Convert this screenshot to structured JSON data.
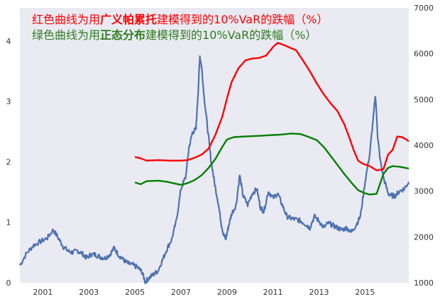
{
  "chart_data": {
    "type": "line",
    "annotations": [
      {
        "parts": [
          "红色曲线为用",
          "广义帕累托",
          "建模得到的10%VaR的跌幅（%）"
        ],
        "color": "#ff0000",
        "strong_index": 1
      },
      {
        "parts": [
          "绿色曲线为用",
          "正态分布",
          "建模得到的10%VaR的跌幅（%）"
        ],
        "color": "#2d7d1e",
        "strong_index": 1
      }
    ],
    "x_axis": {
      "range": [
        2000.0,
        2016.9
      ],
      "ticks": [
        "2001",
        "2003",
        "2005",
        "2007",
        "2009",
        "2011",
        "2013",
        "2015"
      ]
    },
    "y_left": {
      "range": [
        0,
        4.55
      ],
      "ticks": [
        "0",
        "1",
        "2",
        "3",
        "4"
      ]
    },
    "y_right": {
      "range": [
        1000,
        7000
      ],
      "ticks": [
        "1000",
        "2000",
        "3000",
        "4000",
        "5000",
        "6000",
        "7000"
      ]
    },
    "grid": false,
    "background_color": "#eaeaf2",
    "series": [
      {
        "axis": "right",
        "color": "#4c72b0",
        "points": [
          [
            2000.0,
            1380
          ],
          [
            2000.3,
            1650
          ],
          [
            2000.6,
            1820
          ],
          [
            2000.9,
            1900
          ],
          [
            2001.2,
            1980
          ],
          [
            2001.45,
            2160
          ],
          [
            2001.7,
            1950
          ],
          [
            2001.9,
            1780
          ],
          [
            2002.1,
            1690
          ],
          [
            2002.3,
            1660
          ],
          [
            2002.5,
            1700
          ],
          [
            2002.7,
            1640
          ],
          [
            2002.9,
            1540
          ],
          [
            2003.1,
            1620
          ],
          [
            2003.3,
            1610
          ],
          [
            2003.5,
            1560
          ],
          [
            2003.7,
            1540
          ],
          [
            2003.9,
            1610
          ],
          [
            2004.1,
            1760
          ],
          [
            2004.3,
            1600
          ],
          [
            2004.5,
            1500
          ],
          [
            2004.7,
            1420
          ],
          [
            2004.9,
            1390
          ],
          [
            2005.1,
            1340
          ],
          [
            2005.3,
            1240
          ],
          [
            2005.45,
            1020
          ],
          [
            2005.6,
            1100
          ],
          [
            2005.8,
            1180
          ],
          [
            2006.0,
            1260
          ],
          [
            2006.2,
            1500
          ],
          [
            2006.4,
            1750
          ],
          [
            2006.6,
            1950
          ],
          [
            2006.8,
            2350
          ],
          [
            2007.0,
            3050
          ],
          [
            2007.2,
            3300
          ],
          [
            2007.35,
            3950
          ],
          [
            2007.5,
            4280
          ],
          [
            2007.65,
            4350
          ],
          [
            2007.75,
            5200
          ],
          [
            2007.82,
            5950
          ],
          [
            2007.9,
            5700
          ],
          [
            2008.0,
            5100
          ],
          [
            2008.15,
            4400
          ],
          [
            2008.3,
            3700
          ],
          [
            2008.45,
            3200
          ],
          [
            2008.6,
            2800
          ],
          [
            2008.75,
            2300
          ],
          [
            2008.85,
            2050
          ],
          [
            2008.95,
            1950
          ],
          [
            2009.05,
            2200
          ],
          [
            2009.2,
            2500
          ],
          [
            2009.4,
            2700
          ],
          [
            2009.55,
            3350
          ],
          [
            2009.7,
            2900
          ],
          [
            2009.9,
            2700
          ],
          [
            2010.1,
            2950
          ],
          [
            2010.3,
            3050
          ],
          [
            2010.45,
            2650
          ],
          [
            2010.6,
            2550
          ],
          [
            2010.8,
            3000
          ],
          [
            2011.0,
            2850
          ],
          [
            2011.2,
            2950
          ],
          [
            2011.4,
            2700
          ],
          [
            2011.6,
            2450
          ],
          [
            2011.8,
            2400
          ],
          [
            2012.0,
            2380
          ],
          [
            2012.2,
            2350
          ],
          [
            2012.4,
            2280
          ],
          [
            2012.6,
            2200
          ],
          [
            2012.8,
            2450
          ],
          [
            2013.0,
            2350
          ],
          [
            2013.2,
            2200
          ],
          [
            2013.4,
            2300
          ],
          [
            2013.6,
            2250
          ],
          [
            2013.8,
            2200
          ],
          [
            2014.0,
            2150
          ],
          [
            2014.2,
            2200
          ],
          [
            2014.4,
            2100
          ],
          [
            2014.6,
            2250
          ],
          [
            2014.8,
            2450
          ],
          [
            2015.0,
            3200
          ],
          [
            2015.2,
            3800
          ],
          [
            2015.35,
            4550
          ],
          [
            2015.45,
            5100
          ],
          [
            2015.55,
            4200
          ],
          [
            2015.65,
            3700
          ],
          [
            2015.8,
            3300
          ],
          [
            2016.0,
            2950
          ],
          [
            2016.15,
            2900
          ],
          [
            2016.3,
            2900
          ],
          [
            2016.5,
            3000
          ],
          [
            2016.7,
            3050
          ],
          [
            2016.9,
            3200
          ]
        ]
      },
      {
        "axis": "left",
        "color": "#ff0000",
        "points": [
          [
            2005.0,
            2.08
          ],
          [
            2005.25,
            2.06
          ],
          [
            2005.5,
            2.02
          ],
          [
            2006.0,
            2.03
          ],
          [
            2006.5,
            2.02
          ],
          [
            2007.0,
            2.02
          ],
          [
            2007.3,
            2.03
          ],
          [
            2007.6,
            2.07
          ],
          [
            2007.9,
            2.12
          ],
          [
            2008.2,
            2.22
          ],
          [
            2008.5,
            2.45
          ],
          [
            2008.8,
            2.75
          ],
          [
            2009.0,
            3.05
          ],
          [
            2009.2,
            3.32
          ],
          [
            2009.5,
            3.55
          ],
          [
            2009.8,
            3.68
          ],
          [
            2010.1,
            3.71
          ],
          [
            2010.4,
            3.72
          ],
          [
            2010.7,
            3.76
          ],
          [
            2011.0,
            3.9
          ],
          [
            2011.2,
            3.97
          ],
          [
            2011.5,
            3.93
          ],
          [
            2011.8,
            3.88
          ],
          [
            2012.0,
            3.85
          ],
          [
            2012.3,
            3.68
          ],
          [
            2012.6,
            3.5
          ],
          [
            2012.9,
            3.3
          ],
          [
            2013.2,
            3.12
          ],
          [
            2013.5,
            2.97
          ],
          [
            2013.8,
            2.84
          ],
          [
            2014.1,
            2.62
          ],
          [
            2014.3,
            2.42
          ],
          [
            2014.5,
            2.2
          ],
          [
            2014.7,
            2.02
          ],
          [
            2014.9,
            1.97
          ],
          [
            2015.2,
            1.93
          ],
          [
            2015.5,
            1.86
          ],
          [
            2015.8,
            1.88
          ],
          [
            2016.0,
            2.12
          ],
          [
            2016.2,
            2.2
          ],
          [
            2016.4,
            2.42
          ],
          [
            2016.6,
            2.41
          ],
          [
            2016.8,
            2.37
          ],
          [
            2016.9,
            2.34
          ]
        ]
      },
      {
        "axis": "left",
        "color": "#008000",
        "points": [
          [
            2005.0,
            1.66
          ],
          [
            2005.25,
            1.63
          ],
          [
            2005.5,
            1.68
          ],
          [
            2006.0,
            1.69
          ],
          [
            2006.4,
            1.67
          ],
          [
            2007.0,
            1.62
          ],
          [
            2007.3,
            1.65
          ],
          [
            2007.6,
            1.7
          ],
          [
            2007.9,
            1.78
          ],
          [
            2008.2,
            1.9
          ],
          [
            2008.5,
            2.05
          ],
          [
            2008.8,
            2.25
          ],
          [
            2009.0,
            2.37
          ],
          [
            2009.3,
            2.41
          ],
          [
            2009.8,
            2.42
          ],
          [
            2010.3,
            2.43
          ],
          [
            2010.8,
            2.44
          ],
          [
            2011.3,
            2.45
          ],
          [
            2011.8,
            2.47
          ],
          [
            2012.2,
            2.46
          ],
          [
            2012.5,
            2.42
          ],
          [
            2012.9,
            2.36
          ],
          [
            2013.2,
            2.25
          ],
          [
            2013.5,
            2.1
          ],
          [
            2013.8,
            1.95
          ],
          [
            2014.1,
            1.8
          ],
          [
            2014.4,
            1.66
          ],
          [
            2014.7,
            1.53
          ],
          [
            2015.0,
            1.48
          ],
          [
            2015.2,
            1.46
          ],
          [
            2015.5,
            1.47
          ],
          [
            2015.8,
            1.8
          ],
          [
            2016.0,
            1.9
          ],
          [
            2016.2,
            1.93
          ],
          [
            2016.5,
            1.92
          ],
          [
            2016.9,
            1.89
          ]
        ]
      }
    ]
  }
}
